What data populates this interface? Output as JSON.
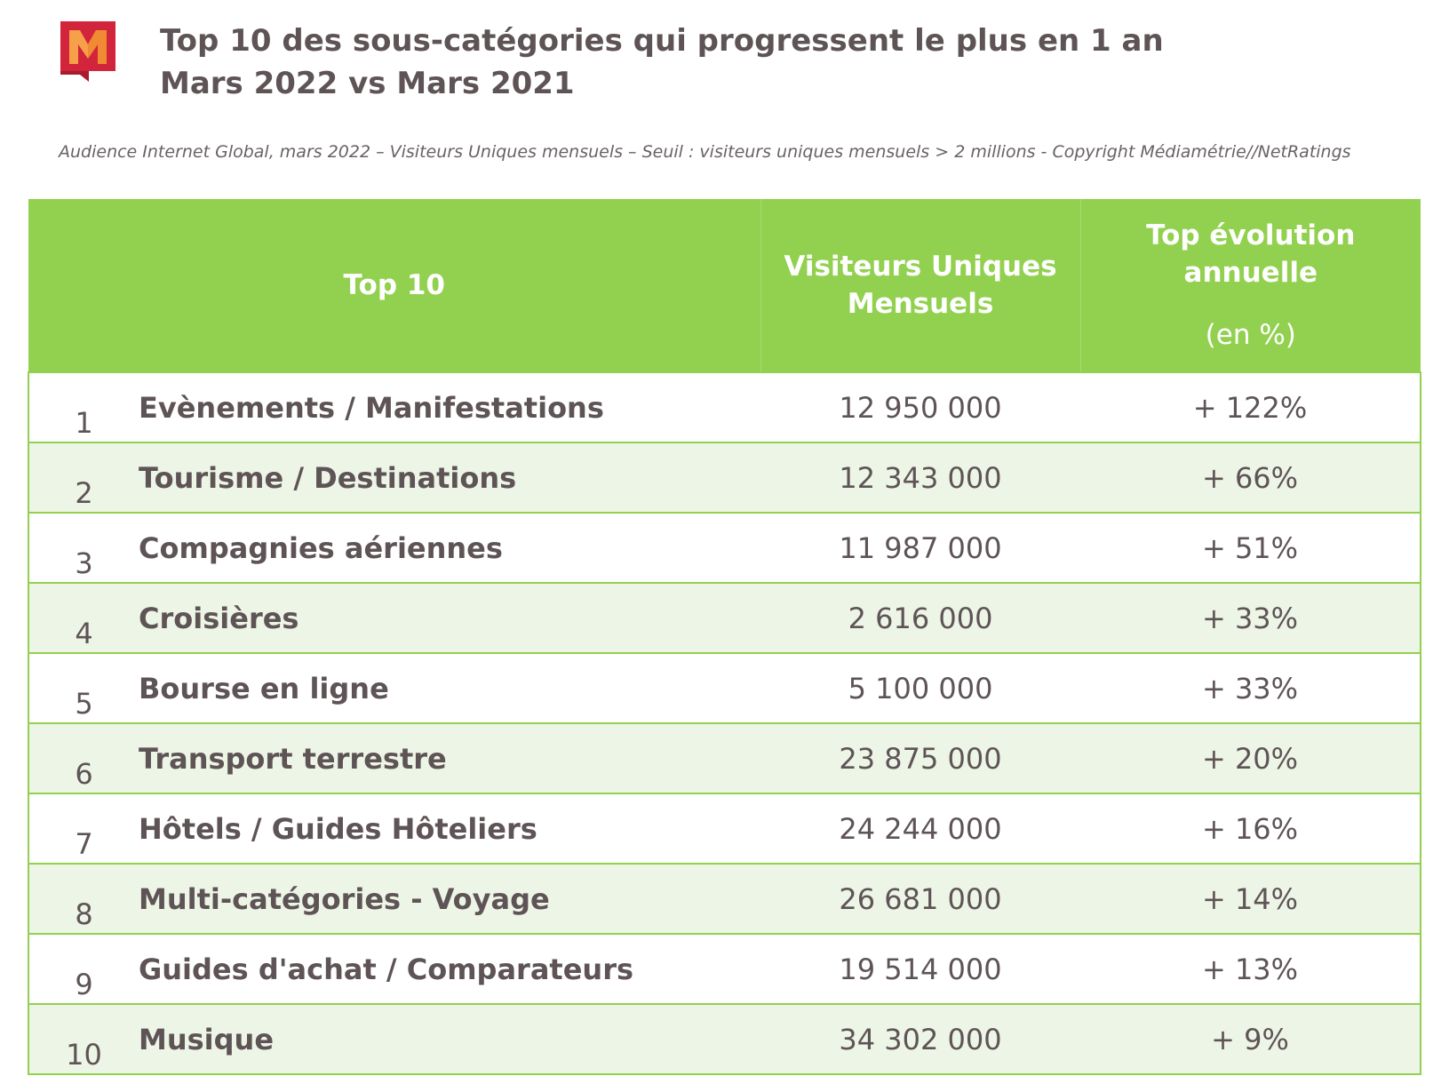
{
  "header": {
    "title": [
      "Top 10 des sous-catégories qui progressent le plus en 1 an",
      "Mars 2022 vs Mars 2021"
    ],
    "subtitle": "Audience Internet Global, mars 2022 – Visiteurs Uniques mensuels – Seuil : visiteurs uniques mensuels > 2 millions - Copyright Médiamétrie//NetRatings"
  },
  "table": {
    "columns": [
      "Top 10",
      "Visiteurs Uniques Mensuels",
      "Top évolution annuelle"
    ],
    "column_note": "(en %)",
    "rows": [
      [
        "1",
        "Evènements / Manifestations",
        "12 950 000",
        "+ 122%"
      ],
      [
        "2",
        "Tourisme / Destinations",
        "12 343 000",
        "+ 66%"
      ],
      [
        "3",
        "Compagnies aériennes",
        "11 987 000",
        "+ 51%"
      ],
      [
        "4",
        "Croisières",
        "2 616 000",
        "+ 33%"
      ],
      [
        "5",
        "Bourse en ligne",
        "5 100 000",
        "+ 33%"
      ],
      [
        "6",
        "Transport terrestre",
        "23 875 000",
        "+ 20%"
      ],
      [
        "7",
        "Hôtels / Guides Hôteliers",
        "24 244 000",
        "+ 16%"
      ],
      [
        "8",
        "Multi-catégories - Voyage",
        "26 681 000",
        "+ 14%"
      ],
      [
        "9",
        "Guides d'achat / Comparateurs",
        "19 514 000",
        "+ 13%"
      ],
      [
        "10",
        "Musique",
        "34 302 000",
        "+ 9%"
      ]
    ]
  }
}
